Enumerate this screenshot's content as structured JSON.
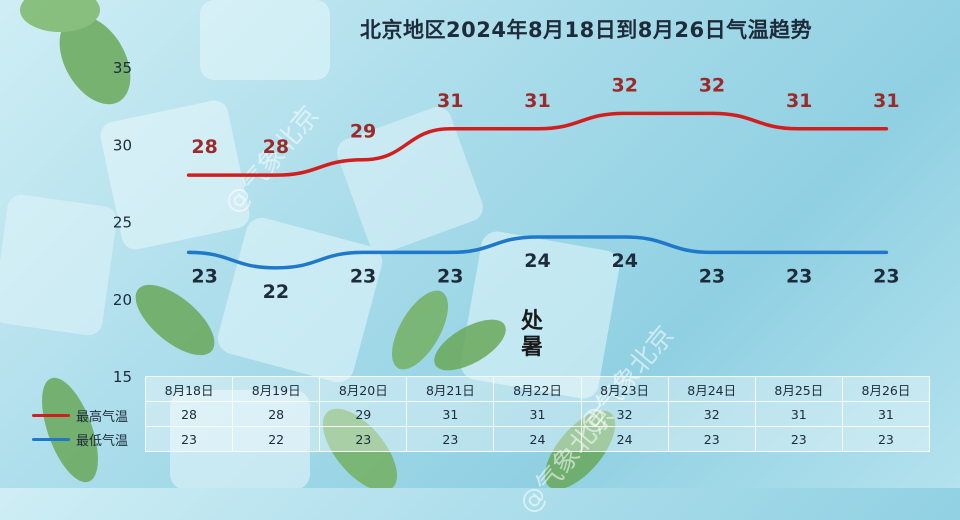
{
  "chart_data": {
    "type": "line",
    "title": "北京地区2024年8月18日到8月26日气温趋势",
    "categories": [
      "8月18日",
      "8月19日",
      "8月20日",
      "8月21日",
      "8月22日",
      "8月23日",
      "8月24日",
      "8月25日",
      "8月26日"
    ],
    "series": [
      {
        "name": "最高气温",
        "values": [
          28,
          28,
          29,
          31,
          31,
          32,
          32,
          31,
          31
        ],
        "color": "#d11f1f",
        "label_color": "#9b2b2b"
      },
      {
        "name": "最低气温",
        "values": [
          23,
          22,
          23,
          23,
          24,
          24,
          23,
          23,
          23
        ],
        "color": "#1f78c8",
        "label_color": "#1d2b3a"
      }
    ],
    "yticks": [
      15,
      20,
      25,
      30,
      35
    ],
    "ylim": [
      15,
      35
    ],
    "grid": false,
    "legend": "bottom-left table"
  },
  "watermark": "@气象北京",
  "stamp": [
    "处",
    "暑"
  ]
}
